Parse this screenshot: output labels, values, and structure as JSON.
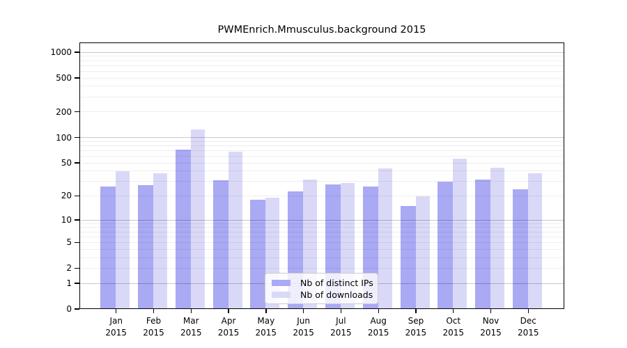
{
  "chart_data": {
    "type": "bar",
    "title": "PWMEnrich.Mmusculus.background 2015",
    "scale": "log1p",
    "ylim": [
      0,
      1000
    ],
    "grid": true,
    "legend_position": "inside-bottom-center",
    "categories": [
      "Jan",
      "Feb",
      "Mar",
      "Apr",
      "May",
      "Jun",
      "Jul",
      "Aug",
      "Sep",
      "Oct",
      "Nov",
      "Dec"
    ],
    "x_year_label": "2015",
    "y_ticks": [
      0,
      1,
      2,
      5,
      10,
      20,
      50,
      100,
      200,
      500,
      1000
    ],
    "series": [
      {
        "name": "Nb of distinct IPs",
        "color": "#a9a9f4",
        "values": [
          26,
          27,
          73,
          31,
          18,
          23,
          28,
          26,
          15,
          30,
          32,
          24
        ]
      },
      {
        "name": "Nb of downloads",
        "color": "#d9d9f7",
        "values": [
          40,
          38,
          125,
          68,
          19,
          32,
          29,
          43,
          20,
          57,
          44,
          38
        ]
      }
    ]
  }
}
